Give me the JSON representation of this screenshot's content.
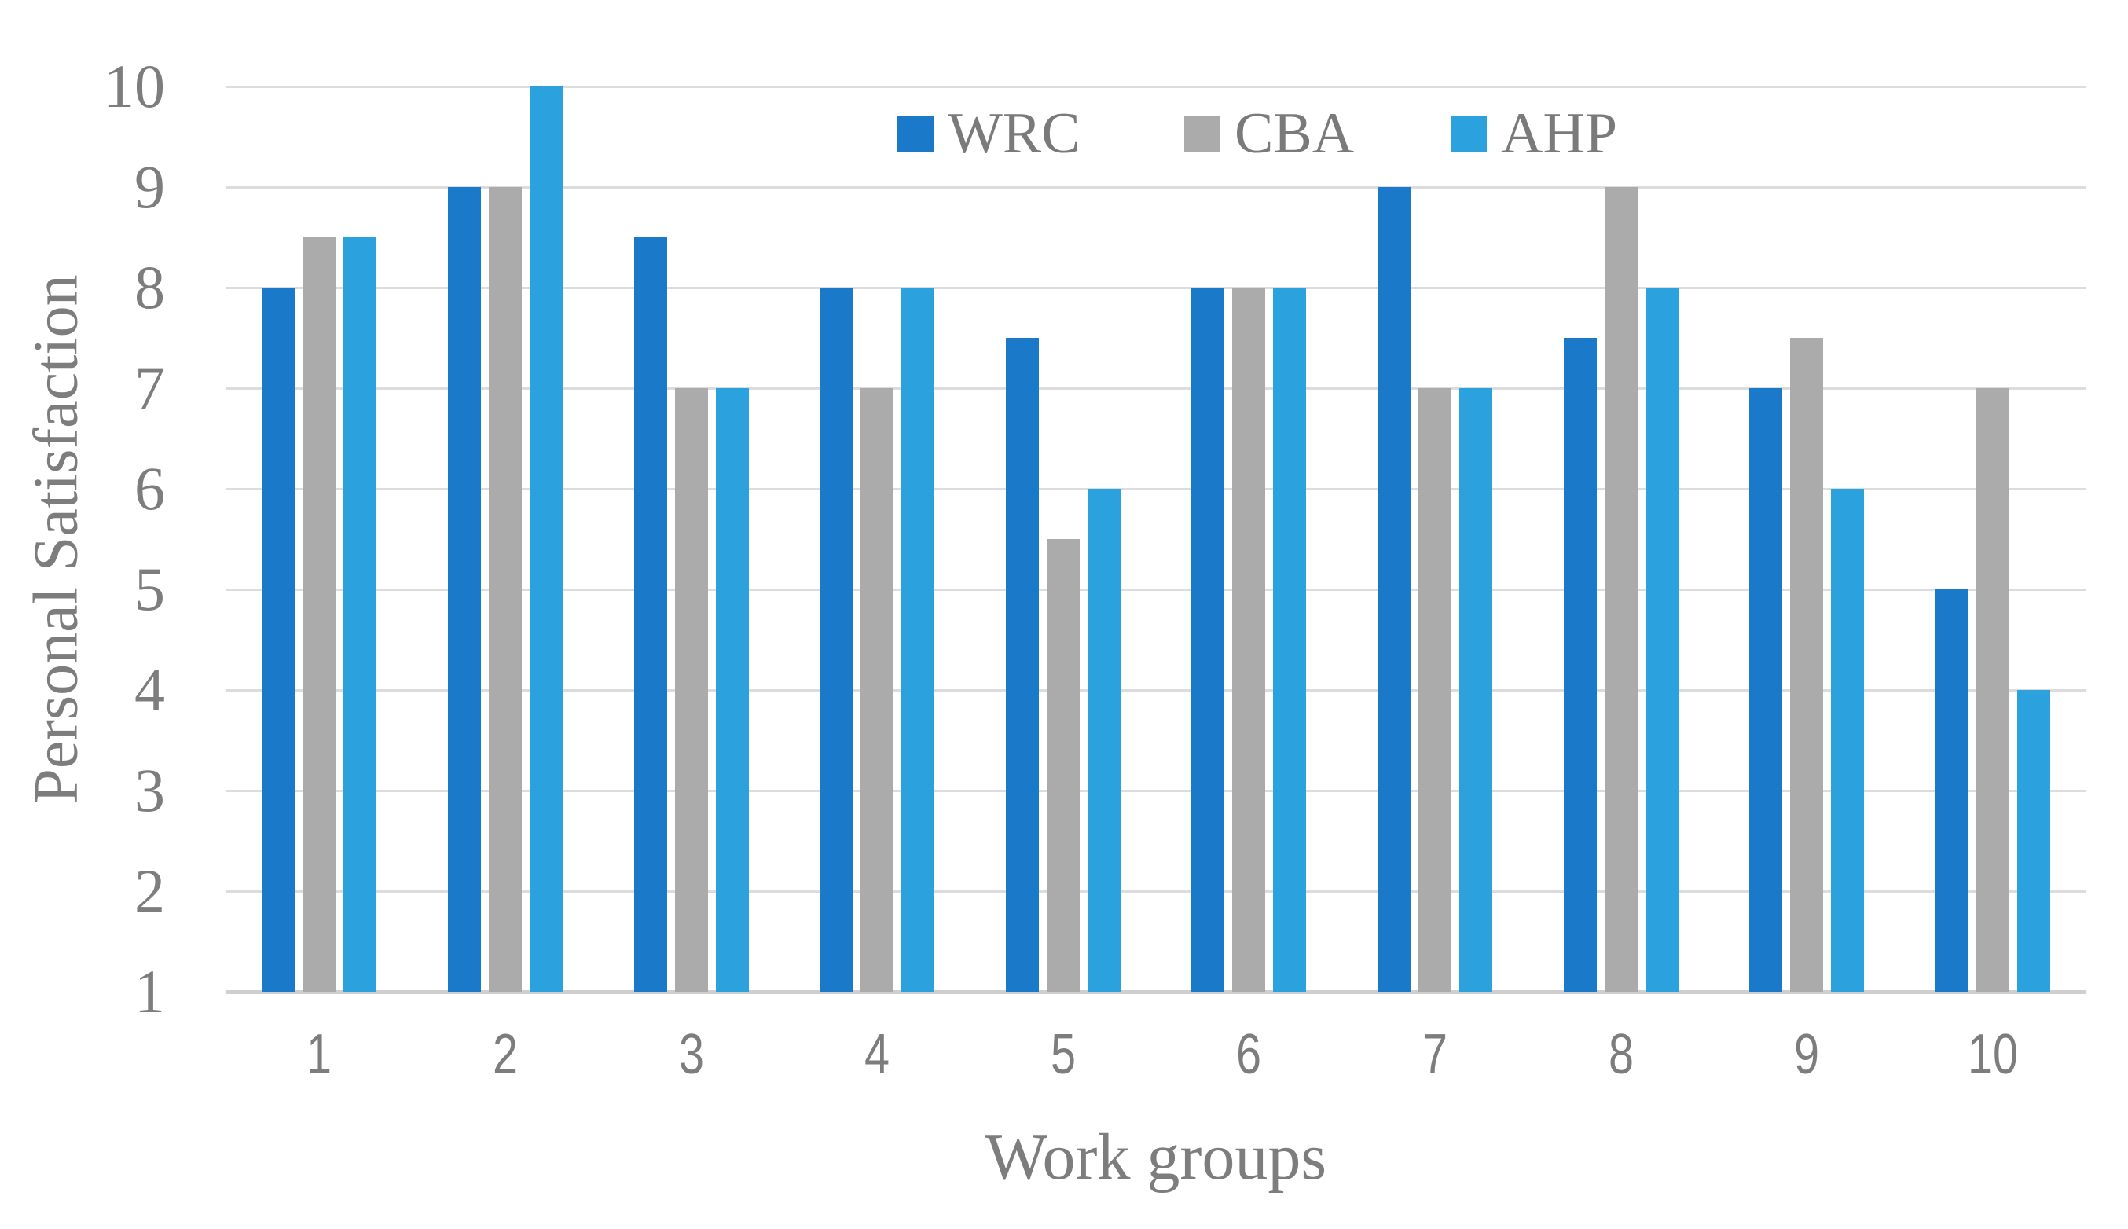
{
  "chart_data": {
    "type": "bar",
    "title": "",
    "categories": [
      "1",
      "2",
      "3",
      "4",
      "5",
      "6",
      "7",
      "8",
      "9",
      "10"
    ],
    "series": [
      {
        "name": "WRC",
        "color": "#1a79c8",
        "values": [
          8,
          9,
          8.5,
          8,
          7.5,
          8,
          9,
          7.5,
          7,
          5
        ]
      },
      {
        "name": "CBA",
        "color": "#ababab",
        "values": [
          8.5,
          9,
          7,
          7,
          5.5,
          8,
          7,
          9,
          7.5,
          7
        ]
      },
      {
        "name": "AHP",
        "color": "#2ba2de",
        "values": [
          8.5,
          10,
          7,
          8,
          6,
          8,
          7,
          8,
          6,
          4
        ]
      }
    ],
    "xlabel": "Work groups",
    "ylabel": "Personal Satisfaction",
    "ylim": [
      1,
      10
    ],
    "yticks": [
      1,
      2,
      3,
      4,
      5,
      6,
      7,
      8,
      9,
      10
    ],
    "grid": true,
    "legend_position": "top-center"
  },
  "colors": {
    "grid": "#dcdcdc",
    "axis_line": "#cfcfcf",
    "tick_text": "#7d7d7d",
    "legend_text": "#7a7a7a",
    "background": "#ffffff"
  }
}
